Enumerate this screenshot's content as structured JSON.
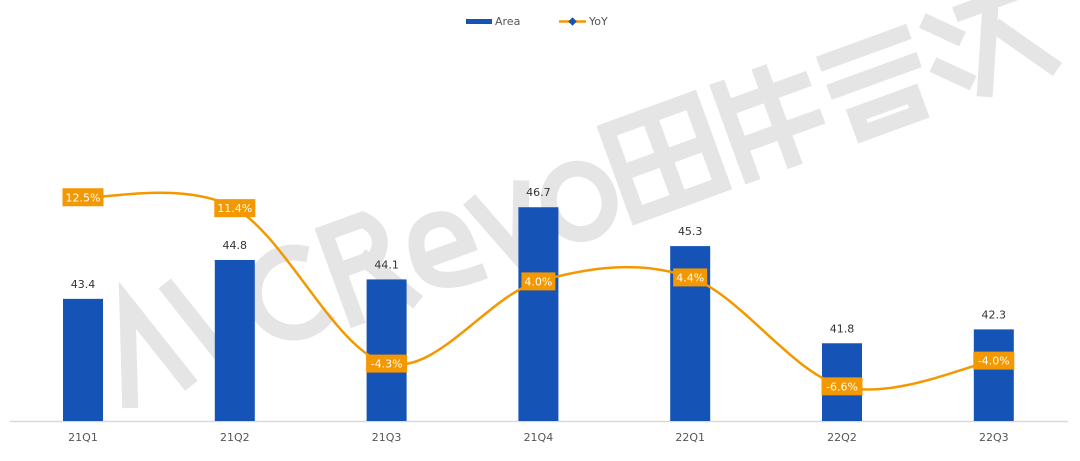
{
  "watermark": "AVC Revo 奥维睿沃",
  "chart_data": {
    "type": "bar+line",
    "categories": [
      "21Q1",
      "21Q2",
      "21Q3",
      "21Q4",
      "22Q1",
      "22Q2",
      "22Q3"
    ],
    "series": [
      {
        "name": "Area",
        "type": "bar",
        "axis": "left",
        "color": "#1553b6",
        "values": [
          43.4,
          44.8,
          44.1,
          46.7,
          45.3,
          41.8,
          42.3
        ],
        "labels": [
          "43.4",
          "44.8",
          "44.1",
          "46.7",
          "45.3",
          "41.8",
          "42.3"
        ]
      },
      {
        "name": "YoY",
        "type": "line",
        "axis": "right",
        "color": "#f39800",
        "values": [
          12.5,
          11.4,
          -4.3,
          4.0,
          4.4,
          -6.6,
          -4.0
        ],
        "labels": [
          "12.5%",
          "11.4%",
          "-4.3%",
          "4.0%",
          "4.4%",
          "-6.6%",
          "-4.0%"
        ]
      }
    ],
    "ylim": [
      39,
      48
    ],
    "y2lim": [
      -10,
      15
    ],
    "legend": "top-center",
    "grid": false
  }
}
